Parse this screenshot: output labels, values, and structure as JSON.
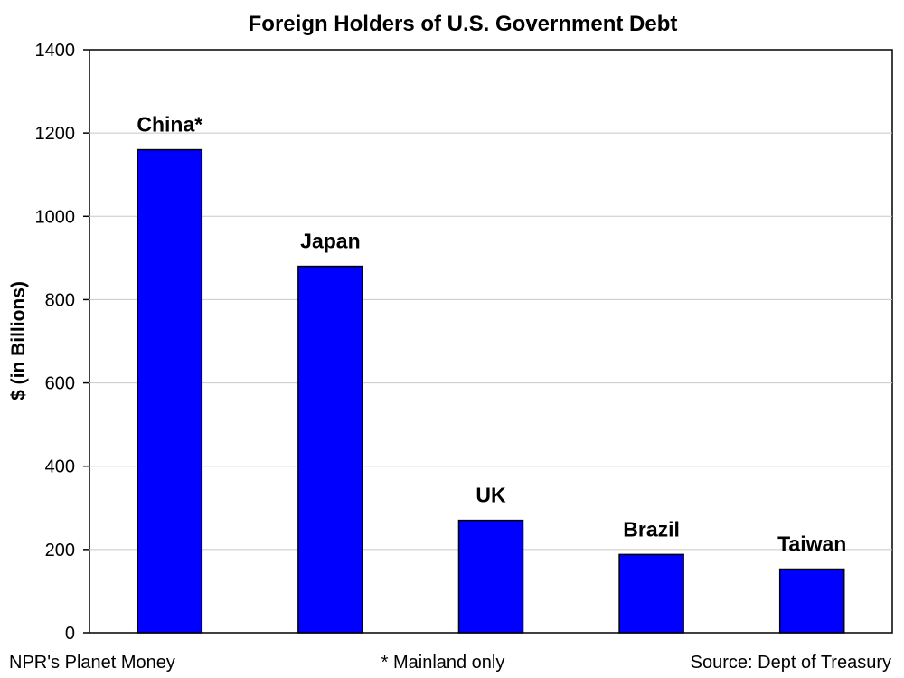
{
  "chart_data": {
    "type": "bar",
    "title": "Foreign Holders of U.S. Government Debt",
    "xlabel": "",
    "ylabel": "$ (in Billions)",
    "categories": [
      "China*",
      "Japan",
      "UK",
      "Brazil",
      "Taiwan"
    ],
    "values": [
      1160,
      880,
      270,
      188,
      153
    ],
    "ylim": [
      0,
      1400
    ],
    "yticks": [
      0,
      200,
      400,
      600,
      800,
      1000,
      1200,
      1400
    ],
    "grid": true,
    "legend": "none",
    "bar_color": "#0000ff",
    "footer": {
      "left": "NPR's Planet Money",
      "center": "* Mainland only",
      "right": "Source: Dept of Treasury"
    }
  }
}
